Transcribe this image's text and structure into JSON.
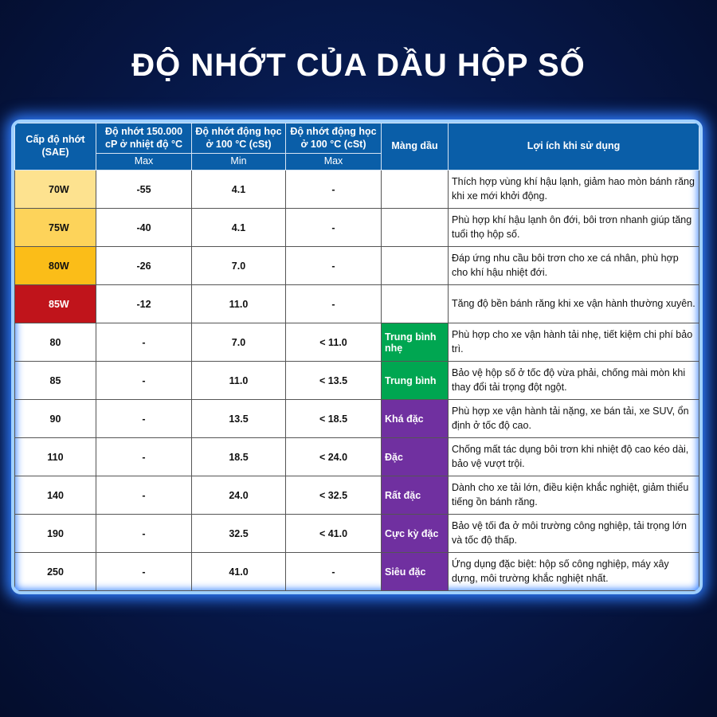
{
  "title": "ĐỘ NHỚT CỦA DẦU HỘP SỐ",
  "headers": {
    "grade": "Cấp độ nhớt (SAE)",
    "cp": "Độ nhớt 150.000 cP ở nhiệt độ °C",
    "kin_min": "Độ nhớt động học ở 100 °C (cSt)",
    "kin_max": "Độ nhớt động học ở 100 °C (cSt)",
    "film": "Màng dầu",
    "benefit": "Lợi ích khi sử dụng",
    "sub_max": "Max",
    "sub_min": "Min",
    "sub_max2": "Max"
  },
  "colors": {
    "header": "#0a5ea8",
    "70W": "#fde28f",
    "75W": "#fdd35a",
    "80W": "#fbbd18",
    "85W": "#c0141b",
    "green": "#00a651",
    "purple": "#7030a0"
  },
  "rows": [
    {
      "grade": "70W",
      "cp": "-55",
      "min": "4.1",
      "max": "-",
      "film": "",
      "benefit": "Thích hợp vùng khí hậu lạnh, giảm hao mòn bánh răng khi xe mới khởi động."
    },
    {
      "grade": "75W",
      "cp": "-40",
      "min": "4.1",
      "max": "-",
      "film": "",
      "benefit": "Phù hợp khí hậu lạnh ôn đới, bôi trơn nhanh giúp tăng tuổi thọ hộp số."
    },
    {
      "grade": "80W",
      "cp": "-26",
      "min": "7.0",
      "max": "-",
      "film": "",
      "benefit": "Đáp ứng nhu cầu bôi trơn cho xe cá nhân, phù hợp cho khí hậu nhiệt đới."
    },
    {
      "grade": "85W",
      "cp": "-12",
      "min": "11.0",
      "max": "-",
      "film": "",
      "benefit": "Tăng độ bền bánh răng khi xe vận hành thường xuyên."
    },
    {
      "grade": "80",
      "cp": "-",
      "min": "7.0",
      "max": "< 11.0",
      "film": "Trung bình nhẹ",
      "benefit": "Phù hợp cho xe vận hành tải nhẹ, tiết kiệm chi phí bảo trì."
    },
    {
      "grade": "85",
      "cp": "-",
      "min": "11.0",
      "max": "< 13.5",
      "film": "Trung bình",
      "benefit": "Bảo vệ hộp số ở tốc độ vừa phải, chống mài mòn khi thay đổi tải trọng đột ngột."
    },
    {
      "grade": "90",
      "cp": "-",
      "min": "13.5",
      "max": "< 18.5",
      "film": "Khá đặc",
      "benefit": "Phù hợp xe vận hành tải nặng, xe bán tải, xe SUV, ổn định ở tốc độ cao."
    },
    {
      "grade": "110",
      "cp": "-",
      "min": "18.5",
      "max": "< 24.0",
      "film": "Đặc",
      "benefit": "Chống mất tác dụng bôi trơn khi nhiệt độ cao kéo dài, bảo vệ vượt trội."
    },
    {
      "grade": "140",
      "cp": "-",
      "min": "24.0",
      "max": "< 32.5",
      "film": "Rất đặc",
      "benefit": "Dành cho xe tải lớn, điều kiện khắc nghiệt, giảm thiểu tiếng ồn bánh răng."
    },
    {
      "grade": "190",
      "cp": "-",
      "min": "32.5",
      "max": "< 41.0",
      "film": "Cực kỳ đặc",
      "benefit": "Bảo vệ tối đa ở môi trường công nghiệp, tải trọng lớn và tốc độ thấp."
    },
    {
      "grade": "250",
      "cp": "-",
      "min": "41.0",
      "max": "-",
      "film": "Siêu đặc",
      "benefit": "Ứng dụng đặc biệt: hộp số công nghiệp, máy xây dựng, môi trường khắc nghiệt nhất."
    }
  ]
}
